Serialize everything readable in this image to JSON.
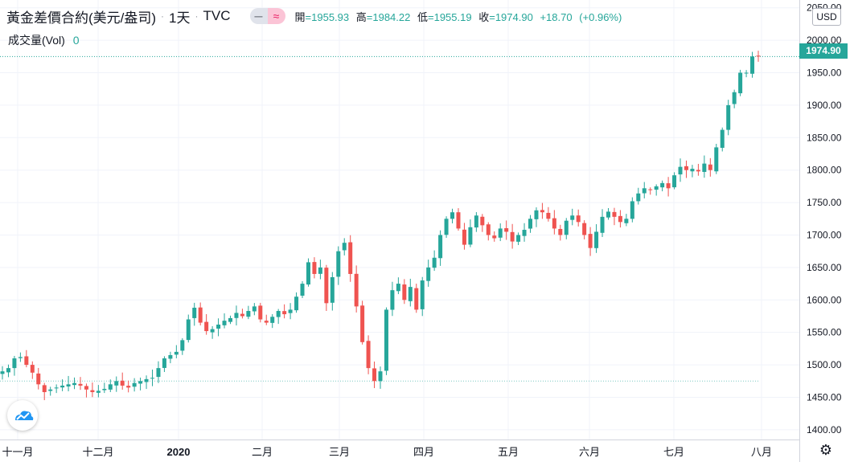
{
  "header": {
    "symbol_title": "黃金差價合約(美元/盎司)",
    "separator": "·",
    "timeframe": "1天",
    "source": "TVC",
    "pill_left_icon": "minus-icon",
    "pill_right_icon": "wave-icon",
    "ohlc": {
      "open_label": "開",
      "open_value": "=1955.93",
      "high_label": "高",
      "high_value": "=1984.22",
      "low_label": "低",
      "low_value": "=1955.19",
      "close_label": "收",
      "close_value": "=1974.90",
      "change": "+18.70",
      "change_pct": "(+0.96%)"
    }
  },
  "volume": {
    "label": "成交量(Vol)",
    "value": "0"
  },
  "currency_button": "USD",
  "last_price_label": "1974.90",
  "colors": {
    "up": "#26a69a",
    "down": "#ef5350",
    "grid": "#f0f3fa",
    "axis_text": "#131722"
  },
  "chart_data": {
    "type": "candlestick",
    "y_range": [
      1385,
      2062
    ],
    "y_ticks": [
      "2050.00",
      "2000.00",
      "1950.00",
      "1900.00",
      "1850.00",
      "1800.00",
      "1750.00",
      "1700.00",
      "1650.00",
      "1600.00",
      "1550.00",
      "1500.00",
      "1450.00",
      "1400.00"
    ],
    "y_tick_values": [
      2050,
      2000,
      1950,
      1900,
      1850,
      1800,
      1750,
      1700,
      1650,
      1600,
      1550,
      1500,
      1450,
      1400
    ],
    "x_ticks": [
      "十一月",
      "十二月",
      "2020",
      "二月",
      "三月",
      "四月",
      "五月",
      "六月",
      "七月",
      "八月"
    ],
    "x_tick_bold": [
      false,
      false,
      true,
      false,
      false,
      false,
      false,
      false,
      false,
      false
    ],
    "last_close": 1974.9,
    "reference_line": 1475.0,
    "close_path": [
      1490,
      1495,
      1510,
      1512,
      1500,
      1488,
      1470,
      1458,
      1462,
      1465,
      1468,
      1470,
      1472,
      1468,
      1462,
      1458,
      1460,
      1463,
      1470,
      1475,
      1468,
      1465,
      1472,
      1475,
      1478,
      1480,
      1495,
      1510,
      1515,
      1520,
      1538,
      1570,
      1588,
      1565,
      1552,
      1555,
      1562,
      1568,
      1572,
      1580,
      1575,
      1583,
      1590,
      1570,
      1565,
      1574,
      1583,
      1578,
      1585,
      1605,
      1625,
      1658,
      1640,
      1650,
      1595,
      1635,
      1675,
      1688,
      1640,
      1590,
      1535,
      1495,
      1475,
      1490,
      1585,
      1615,
      1625,
      1600,
      1620,
      1585,
      1630,
      1650,
      1665,
      1700,
      1725,
      1735,
      1710,
      1685,
      1712,
      1730,
      1715,
      1700,
      1695,
      1710,
      1705,
      1690,
      1700,
      1708,
      1725,
      1738,
      1735,
      1725,
      1710,
      1700,
      1722,
      1730,
      1720,
      1700,
      1680,
      1705,
      1728,
      1736,
      1728,
      1720,
      1725,
      1752,
      1764,
      1772,
      1770,
      1775,
      1780,
      1772,
      1792,
      1805,
      1800,
      1802,
      1798,
      1810,
      1800,
      1835,
      1862,
      1900,
      1920,
      1950,
      1950,
      1975,
      1975
    ]
  }
}
